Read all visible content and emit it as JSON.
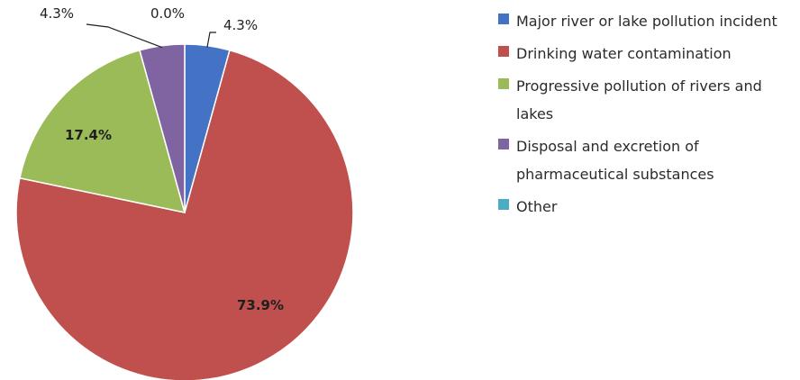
{
  "chart_data": {
    "type": "pie",
    "title": "",
    "categories": [
      "Major river or lake pollution incident",
      "Drinking water contamination",
      "Progressive pollution of rivers and lakes",
      "Disposal and excretion of pharmaceutical substances",
      "Other"
    ],
    "values": [
      4.3,
      73.9,
      17.4,
      4.3,
      0.0
    ],
    "labels": [
      "4.3%",
      "73.9%",
      "17.4%",
      "4.3%",
      "0.0%"
    ],
    "colors": [
      "#4472C4",
      "#C0504D",
      "#9BBB59",
      "#8064A2",
      "#4BACC6"
    ],
    "start_angle": "top (12 o'clock), clockwise",
    "legend_position": "right"
  }
}
